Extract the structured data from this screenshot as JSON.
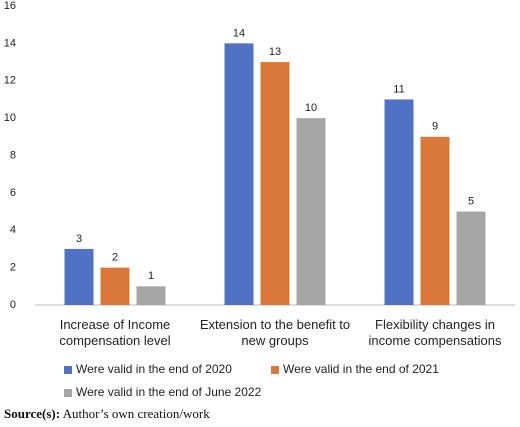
{
  "chart_data": {
    "type": "bar",
    "categories": [
      "Increase of Income compensation level",
      "Extension to the benefit to new groups",
      "Flexibility changes in income compensations"
    ],
    "series": [
      {
        "name": "Were valid in the end of 2020",
        "color": "#4f72c4",
        "values": [
          3,
          14,
          11
        ]
      },
      {
        "name": "Were valid in the end of 2021",
        "color": "#d9783a",
        "values": [
          2,
          13,
          9
        ]
      },
      {
        "name": "Were valid in the end of June 2022",
        "color": "#a5a5a5",
        "values": [
          1,
          10,
          5
        ]
      }
    ],
    "ylim": [
      0,
      16
    ],
    "yticks": [
      0,
      2,
      4,
      6,
      8,
      10,
      12,
      14,
      16
    ],
    "grid": false,
    "source_label": "Source(s):",
    "source_text": "Author’s own creation/work"
  }
}
